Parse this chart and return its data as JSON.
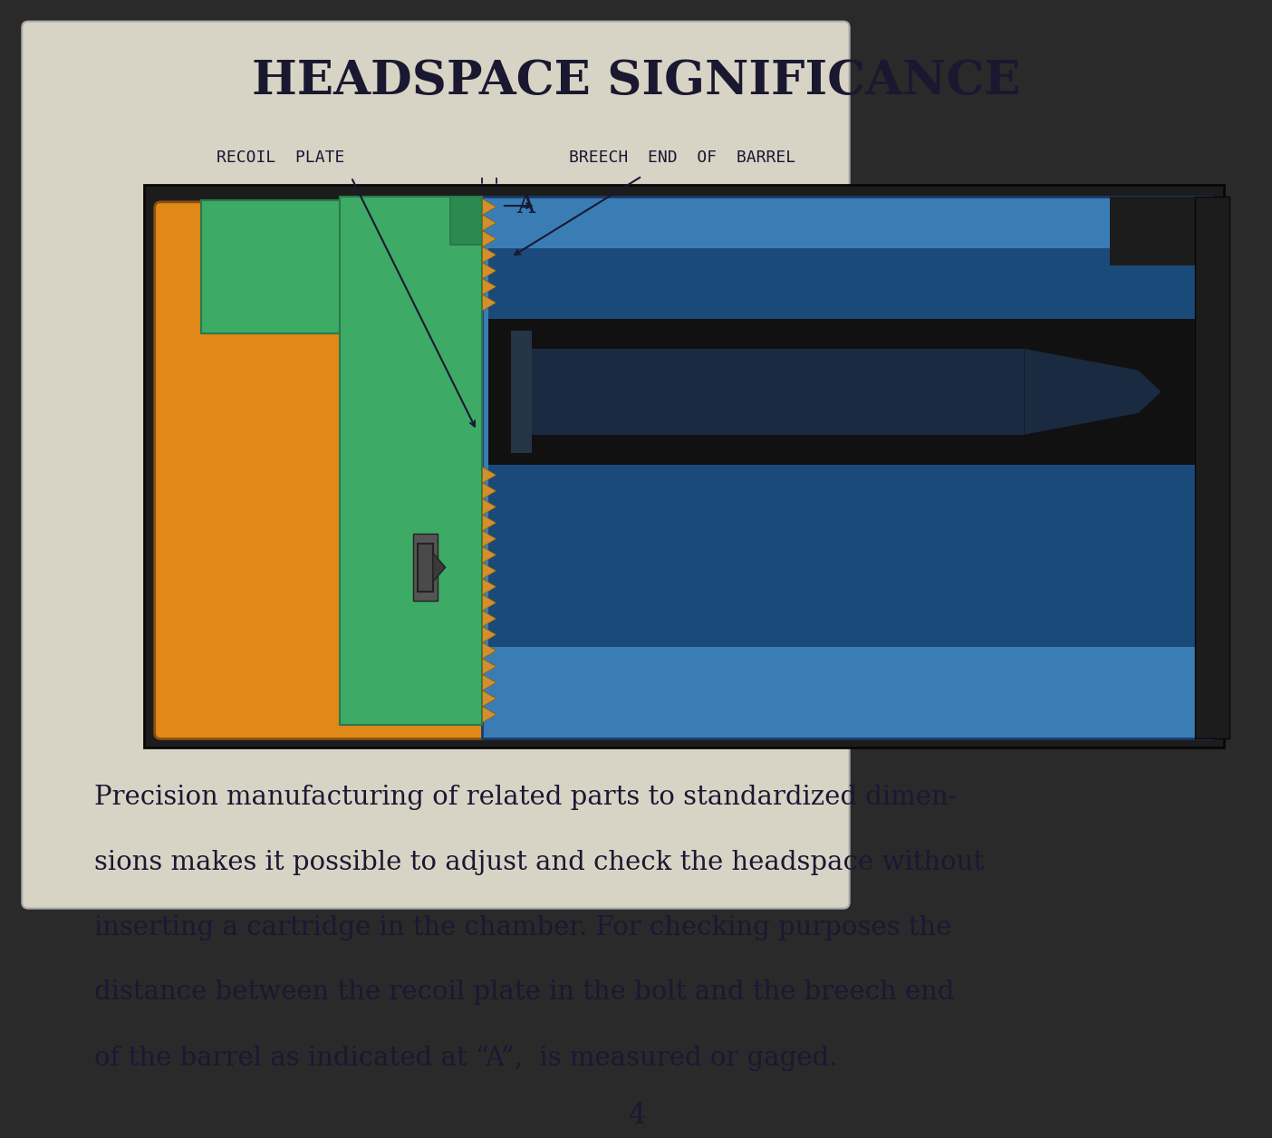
{
  "background_color": "#2a2a2a",
  "card_background": "#d8d4c5",
  "title": "HEADSPACE SIGNIFICANCE",
  "title_fontsize": 36,
  "title_color": "#1a1830",
  "label_recoil_plate": "RECOIL  PLATE",
  "label_breech": "BREECH  END  OF  BARREL",
  "page_number": "4",
  "black_box_color": "#1c1c1c",
  "green_color": "#3daa65",
  "green_dark": "#2a7a48",
  "orange_color": "#e08818",
  "blue_color": "#3a7db5",
  "blue_dark": "#1a4a7a",
  "thread_color": "#d09030",
  "text_color": "#1a1832",
  "body_text_line1": "Precision manufacturing of related parts to standardized dimen-",
  "body_text_line2": "sions makes it possible to adjust and check the headspace without",
  "body_text_line3": "inserting a cartridge in the chamber. For checking purposes the",
  "body_text_line4": "distance between the recoil plate in the bolt and the breech end",
  "body_text_line5": "of the barrel as indicated at “A”,  is measured or gaged."
}
